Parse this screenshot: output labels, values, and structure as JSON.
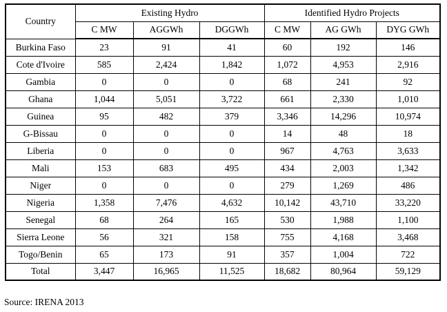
{
  "page": {
    "source_note": "Source: IRENA 2013"
  },
  "colors": {
    "background": "#ffffff",
    "border": "#000000",
    "text": "#000000"
  },
  "table": {
    "columns": {
      "country": "Country",
      "group_existing": "Existing Hydro",
      "group_identified": "Identified Hydro Projects",
      "existing_subs": [
        "C MW",
        "AGGWh",
        "DGGWh"
      ],
      "identified_subs": [
        "C MW",
        "AG GWh",
        "DYG GWh"
      ]
    },
    "rows": [
      {
        "country": "Burkina Faso",
        "values": [
          "23",
          "91",
          "41",
          "60",
          "192",
          "146"
        ]
      },
      {
        "country": "Cote d'Ivoire",
        "values": [
          "585",
          "2,424",
          "1,842",
          "1,072",
          "4,953",
          "2,916"
        ]
      },
      {
        "country": "Gambia",
        "values": [
          "0",
          "0",
          "0",
          "68",
          "241",
          "92"
        ]
      },
      {
        "country": "Ghana",
        "values": [
          "1,044",
          "5,051",
          "3,722",
          "661",
          "2,330",
          "1,010"
        ]
      },
      {
        "country": "Guinea",
        "values": [
          "95",
          "482",
          "379",
          "3,346",
          "14,296",
          "10,974"
        ]
      },
      {
        "country": "G-Bissau",
        "values": [
          "0",
          "0",
          "0",
          "14",
          "48",
          "18"
        ]
      },
      {
        "country": "Liberia",
        "values": [
          "0",
          "0",
          "0",
          "967",
          "4,763",
          "3,633"
        ]
      },
      {
        "country": "Mali",
        "values": [
          "153",
          "683",
          "495",
          "434",
          "2,003",
          "1,342"
        ]
      },
      {
        "country": "Niger",
        "values": [
          "0",
          "0",
          "0",
          "279",
          "1,269",
          "486"
        ]
      },
      {
        "country": "Nigeria",
        "values": [
          "1,358",
          "7,476",
          "4,632",
          "10,142",
          "43,710",
          "33,220"
        ]
      },
      {
        "country": "Senegal",
        "values": [
          "68",
          "264",
          "165",
          "530",
          "1,988",
          "1,100"
        ]
      },
      {
        "country": "Sierra Leone",
        "values": [
          "56",
          "321",
          "158",
          "755",
          "4,168",
          "3,468"
        ]
      },
      {
        "country": "Togo/Benin",
        "values": [
          "65",
          "173",
          "91",
          "357",
          "1,004",
          "722"
        ]
      }
    ],
    "total": {
      "label": "Total",
      "values": [
        "3,447",
        "16,965",
        "11,525",
        "18,682",
        "80,964",
        "59,129"
      ]
    }
  }
}
